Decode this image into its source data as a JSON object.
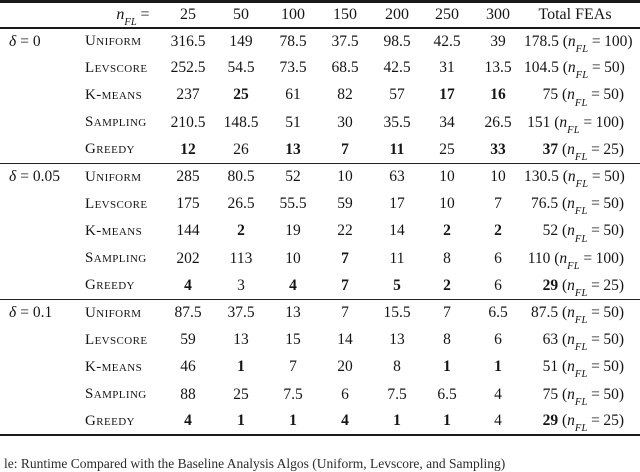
{
  "page": {
    "background": "#ffffff",
    "text_color": "#151515",
    "rule_color": "#1a1a1a"
  },
  "math": {
    "n": "n",
    "sub": "FL"
  },
  "symbols": {
    "eq": "=",
    "open": "(",
    "close": ")"
  },
  "header": {
    "columns": [
      "25",
      "50",
      "100",
      "150",
      "200",
      "250",
      "300"
    ],
    "total_label": "Total FEAs"
  },
  "sections": [
    {
      "label_sym": "δ",
      "label_rest": "= 0",
      "rows": [
        {
          "method": "Uniform",
          "values": [
            "316.5",
            "149",
            "78.5",
            "37.5",
            "98.5",
            "42.5",
            "39"
          ],
          "bold": [
            false,
            false,
            false,
            false,
            false,
            false,
            false
          ],
          "total": {
            "value": "178.5",
            "nfl": "100",
            "bold": false
          }
        },
        {
          "method": "Levscore",
          "values": [
            "252.5",
            "54.5",
            "73.5",
            "68.5",
            "42.5",
            "31",
            "13.5"
          ],
          "bold": [
            false,
            false,
            false,
            false,
            false,
            false,
            false
          ],
          "total": {
            "value": "104.5",
            "nfl": "50",
            "bold": false
          }
        },
        {
          "method": "K-means",
          "values": [
            "237",
            "25",
            "61",
            "82",
            "57",
            "17",
            "16"
          ],
          "bold": [
            false,
            true,
            false,
            false,
            false,
            true,
            true
          ],
          "total": {
            "value": "75",
            "nfl": "50",
            "bold": false
          }
        },
        {
          "method": "Sampling",
          "values": [
            "210.5",
            "148.5",
            "51",
            "30",
            "35.5",
            "34",
            "26.5"
          ],
          "bold": [
            false,
            false,
            false,
            false,
            false,
            false,
            false
          ],
          "total": {
            "value": "151",
            "nfl": "100",
            "bold": false
          }
        },
        {
          "method": "Greedy",
          "values": [
            "12",
            "26",
            "13",
            "7",
            "11",
            "25",
            "33"
          ],
          "bold": [
            true,
            false,
            true,
            true,
            true,
            false,
            true
          ],
          "total": {
            "value": "37",
            "nfl": "25",
            "bold": true
          }
        }
      ]
    },
    {
      "label_sym": "δ",
      "label_rest": "= 0.05",
      "rows": [
        {
          "method": "Uniform",
          "values": [
            "285",
            "80.5",
            "52",
            "10",
            "63",
            "10",
            "10"
          ],
          "bold": [
            false,
            false,
            false,
            false,
            false,
            false,
            false
          ],
          "total": {
            "value": "130.5",
            "nfl": "50",
            "bold": false
          }
        },
        {
          "method": "Levscore",
          "values": [
            "175",
            "26.5",
            "55.5",
            "59",
            "17",
            "10",
            "7"
          ],
          "bold": [
            false,
            false,
            false,
            false,
            false,
            false,
            false
          ],
          "total": {
            "value": "76.5",
            "nfl": "50",
            "bold": false
          }
        },
        {
          "method": "K-means",
          "values": [
            "144",
            "2",
            "19",
            "22",
            "14",
            "2",
            "2"
          ],
          "bold": [
            false,
            true,
            false,
            false,
            false,
            true,
            true
          ],
          "total": {
            "value": "52",
            "nfl": "50",
            "bold": false
          }
        },
        {
          "method": "Sampling",
          "values": [
            "202",
            "113",
            "10",
            "7",
            "11",
            "8",
            "6"
          ],
          "bold": [
            false,
            false,
            false,
            true,
            false,
            false,
            false
          ],
          "total": {
            "value": "110",
            "nfl": "100",
            "bold": false
          }
        },
        {
          "method": "Greedy",
          "values": [
            "4",
            "3",
            "4",
            "7",
            "5",
            "2",
            "6"
          ],
          "bold": [
            true,
            false,
            true,
            true,
            true,
            true,
            false
          ],
          "total": {
            "value": "29",
            "nfl": "25",
            "bold": true
          }
        }
      ]
    },
    {
      "label_sym": "δ",
      "label_rest": "= 0.1",
      "rows": [
        {
          "method": "Uniform",
          "values": [
            "87.5",
            "37.5",
            "13",
            "7",
            "15.5",
            "7",
            "6.5"
          ],
          "bold": [
            false,
            false,
            false,
            false,
            false,
            false,
            false
          ],
          "total": {
            "value": "87.5",
            "nfl": "50",
            "bold": false
          }
        },
        {
          "method": "Levscore",
          "values": [
            "59",
            "13",
            "15",
            "14",
            "13",
            "8",
            "6"
          ],
          "bold": [
            false,
            false,
            false,
            false,
            false,
            false,
            false
          ],
          "total": {
            "value": "63",
            "nfl": "50",
            "bold": false
          }
        },
        {
          "method": "K-means",
          "values": [
            "46",
            "1",
            "7",
            "20",
            "8",
            "1",
            "1"
          ],
          "bold": [
            false,
            true,
            false,
            false,
            false,
            true,
            true
          ],
          "total": {
            "value": "51",
            "nfl": "50",
            "bold": false
          }
        },
        {
          "method": "Sampling",
          "values": [
            "88",
            "25",
            "7.5",
            "6",
            "7.5",
            "6.5",
            "4"
          ],
          "bold": [
            false,
            false,
            false,
            false,
            false,
            false,
            false
          ],
          "total": {
            "value": "75",
            "nfl": "50",
            "bold": false
          }
        },
        {
          "method": "Greedy",
          "values": [
            "4",
            "1",
            "1",
            "4",
            "1",
            "1",
            "4"
          ],
          "bold": [
            true,
            true,
            true,
            true,
            true,
            true,
            false
          ],
          "total": {
            "value": "29",
            "nfl": "25",
            "bold": true
          }
        }
      ]
    }
  ],
  "caption_fragment": "le: Runtime Compared with the Baseline Analysis Algos (Uniform, Levscore, and Sampling)"
}
